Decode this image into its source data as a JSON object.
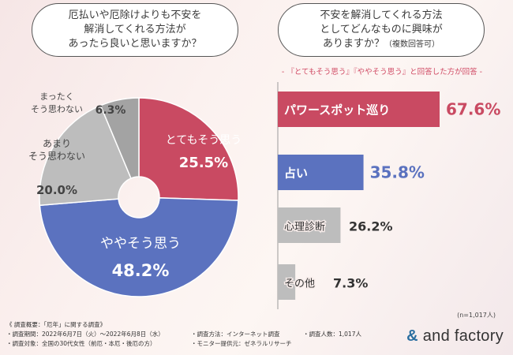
{
  "questions": {
    "q1": {
      "lines": [
        "厄払いや厄除けよりも不安を",
        "解消してくれる方法が",
        "あったら良いと思いますか？"
      ]
    },
    "q2": {
      "lines": [
        "不安を解消してくれる方法",
        "としてどんなものに興味が",
        "ありますか？"
      ],
      "note": "（複数回答可）"
    }
  },
  "subtitle": "- 『とてもそう思う』『ややそう思う』と回答した方が回答 -",
  "chart_data": [
    {
      "type": "pie",
      "variant": "donut",
      "slices": [
        {
          "label": "とてもそう思う",
          "label_lines": [
            "とてもそう思う"
          ],
          "value": 25.5,
          "display": "25.5%",
          "color": "#c94a62"
        },
        {
          "label": "ややそう思う",
          "label_lines": [
            "ややそう思う"
          ],
          "value": 48.2,
          "display": "48.2%",
          "color": "#5b72bf"
        },
        {
          "label": "あまりそう思わない",
          "label_lines": [
            "あまり",
            "そう思わない"
          ],
          "value": 20.0,
          "display": "20.0%",
          "color": "#bdbdbd"
        },
        {
          "label": "まったくそう思わない",
          "label_lines": [
            "まったく",
            "そう思わない"
          ],
          "value": 6.3,
          "display": "6.3%",
          "color": "#a3a3a3"
        }
      ]
    },
    {
      "type": "bar",
      "orientation": "horizontal",
      "categories": [
        "パワースポット巡り",
        "占い",
        "心理診断",
        "その他"
      ],
      "values": [
        67.6,
        35.8,
        26.2,
        7.3
      ],
      "displays": [
        "67.6%",
        "35.8%",
        "26.2%",
        "7.3%"
      ],
      "colors": [
        "#c94a62",
        "#5b72bf",
        "#bdbdbd",
        "#bdbdbd"
      ],
      "xlim": [
        0,
        67.6
      ],
      "n_note": "(n=1,017人)"
    }
  ],
  "footer": {
    "left": [
      "《 調査概要：「厄年」に関する調査》",
      "・調査期間：2022年6月7日（火）〜2022年6月8日（水）",
      "・調査対象：全国の30代女性（前厄・本厄・後厄の方）"
    ],
    "mid": [
      "・調査方法：インターネット調査",
      "・モニター提供元：ゼネラルリサーチ"
    ],
    "right": [
      "・調査人数：1,017人"
    ]
  },
  "logo": {
    "amp": "&",
    "text": " and factory"
  }
}
